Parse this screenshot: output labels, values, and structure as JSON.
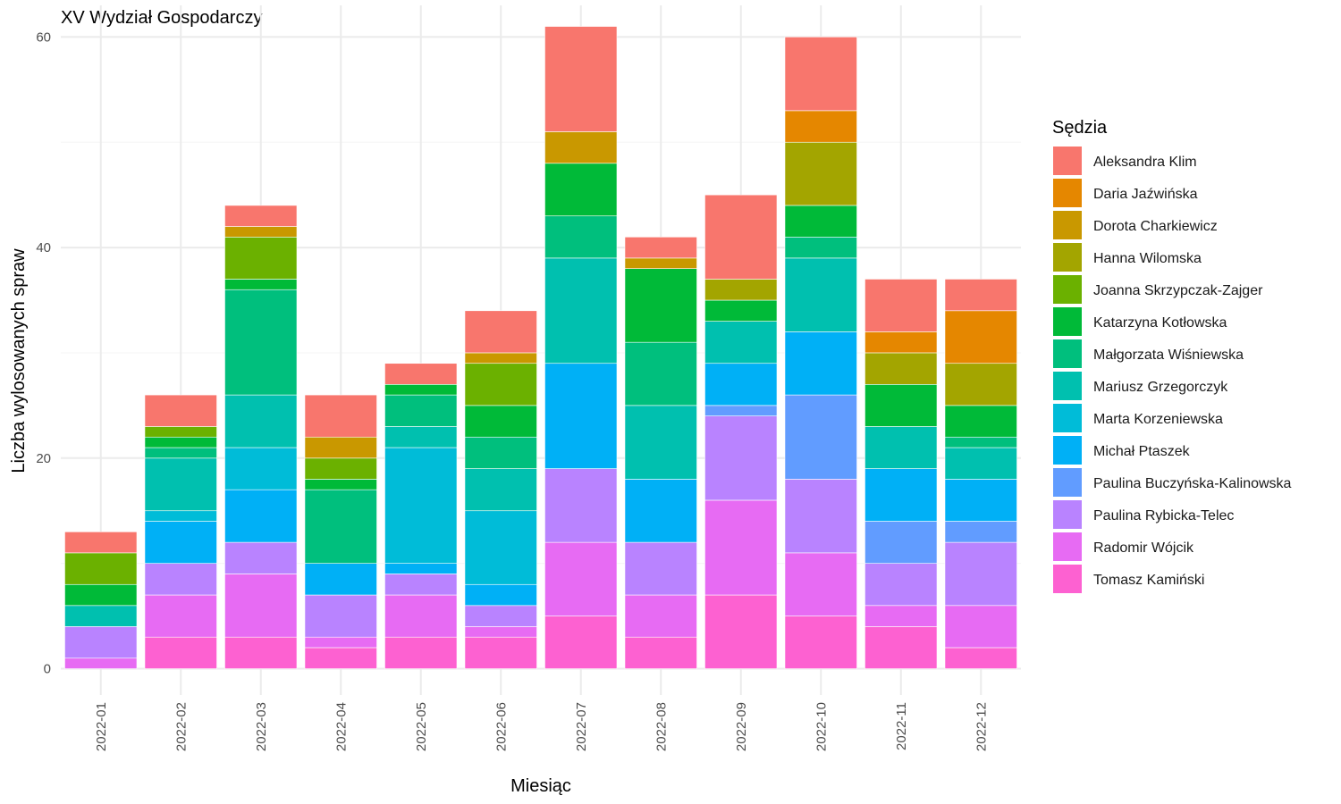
{
  "chart_data": {
    "type": "bar",
    "stacked": true,
    "title": "XV Wydział Gospodarczy",
    "xlabel": "Miesiąc",
    "ylabel": "Liczba wylosowanych spraw",
    "ylim": [
      -2.5,
      63
    ],
    "yticks": [
      0,
      20,
      40,
      60
    ],
    "grid": true,
    "legend_title": "Sędzia",
    "legend_position": "right",
    "categories": [
      "2022-01",
      "2022-02",
      "2022-03",
      "2022-04",
      "2022-05",
      "2022-06",
      "2022-07",
      "2022-08",
      "2022-09",
      "2022-10",
      "2022-11",
      "2022-12"
    ],
    "series": [
      {
        "name": "Aleksandra Klim",
        "color": "#F8766D",
        "values": [
          2,
          3,
          2,
          4,
          2,
          4,
          10,
          2,
          8,
          7,
          5,
          3
        ]
      },
      {
        "name": "Daria Jaźwińska",
        "color": "#E58700",
        "values": [
          0,
          0,
          0,
          0,
          0,
          0,
          0,
          0,
          0,
          3,
          2,
          5
        ]
      },
      {
        "name": "Dorota Charkiewicz",
        "color": "#C99800",
        "values": [
          0,
          0,
          1,
          2,
          0,
          1,
          3,
          1,
          0,
          0,
          0,
          0
        ]
      },
      {
        "name": "Hanna Wilomska",
        "color": "#A3A500",
        "values": [
          0,
          0,
          0,
          0,
          0,
          0,
          0,
          0,
          2,
          6,
          3,
          4
        ]
      },
      {
        "name": "Joanna Skrzypczak-Zajger",
        "color": "#6BB100",
        "values": [
          3,
          1,
          4,
          2,
          0,
          4,
          0,
          0,
          0,
          0,
          0,
          0
        ]
      },
      {
        "name": "Katarzyna Kotłowska",
        "color": "#00BA38",
        "values": [
          2,
          1,
          1,
          1,
          1,
          3,
          5,
          7,
          2,
          3,
          4,
          3
        ]
      },
      {
        "name": "Małgorzata Wiśniewska",
        "color": "#00BF7D",
        "values": [
          0,
          1,
          10,
          7,
          3,
          3,
          4,
          6,
          0,
          2,
          0,
          1
        ]
      },
      {
        "name": "Mariusz Grzegorczyk",
        "color": "#00C0AF",
        "values": [
          2,
          5,
          5,
          0,
          2,
          4,
          10,
          7,
          4,
          7,
          4,
          3
        ]
      },
      {
        "name": "Marta Korzeniewska",
        "color": "#00BCD8",
        "values": [
          0,
          1,
          4,
          0,
          11,
          7,
          0,
          0,
          0,
          0,
          0,
          0
        ]
      },
      {
        "name": "Michał Ptaszek",
        "color": "#00B0F6",
        "values": [
          0,
          4,
          5,
          3,
          1,
          2,
          10,
          6,
          4,
          6,
          5,
          4
        ]
      },
      {
        "name": "Paulina Buczyńska-Kalinowska",
        "color": "#619CFF",
        "values": [
          0,
          0,
          0,
          0,
          0,
          0,
          0,
          0,
          1,
          8,
          4,
          2
        ]
      },
      {
        "name": "Paulina Rybicka-Telec",
        "color": "#B983FF",
        "values": [
          3,
          3,
          3,
          4,
          2,
          2,
          7,
          5,
          8,
          7,
          4,
          6
        ]
      },
      {
        "name": "Radomir Wójcik",
        "color": "#E76BF3",
        "values": [
          1,
          4,
          6,
          1,
          4,
          1,
          7,
          4,
          9,
          6,
          2,
          4
        ]
      },
      {
        "name": "Tomasz Kamiński",
        "color": "#FD61D1",
        "values": [
          0,
          3,
          3,
          2,
          3,
          3,
          5,
          3,
          7,
          5,
          4,
          2
        ]
      }
    ]
  }
}
